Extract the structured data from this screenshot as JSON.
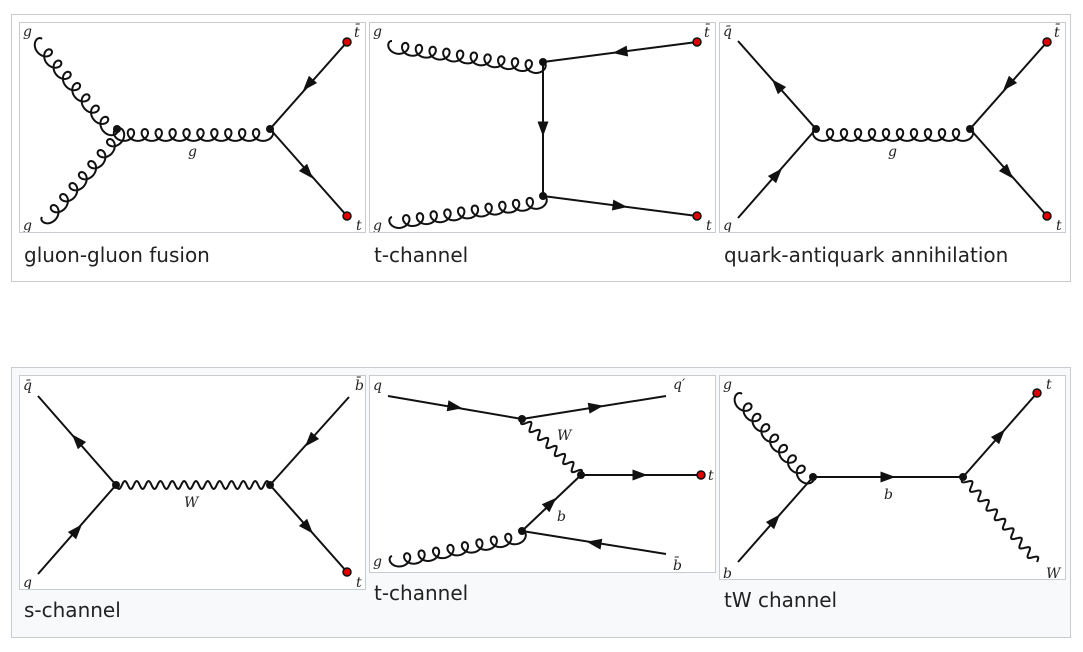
{
  "row1": {
    "panels": [
      {
        "id": "ggf",
        "caption": "gluon-gluon fusion",
        "labels": {
          "g_in_top": "g",
          "g_in_bottom": "g",
          "g_mid": "g",
          "tbar": "t̄",
          "t": "t"
        }
      },
      {
        "id": "tch1",
        "caption": "t-channel",
        "labels": {
          "g_in_top": "g",
          "g_in_bottom": "g",
          "tbar": "t̄",
          "t": "t"
        }
      },
      {
        "id": "qqa",
        "caption": "quark-antiquark annihilation",
        "labels": {
          "qbar": "q̄",
          "q": "q",
          "g_mid": "g",
          "tbar": "t̄",
          "t": "t"
        }
      }
    ]
  },
  "row2": {
    "panels": [
      {
        "id": "sch",
        "caption": "s-channel",
        "labels": {
          "qbar": "q̄",
          "q": "q",
          "W": "W",
          "bbar": "b̄",
          "t": "t"
        }
      },
      {
        "id": "tch2",
        "caption": "t-channel",
        "labels": {
          "q": "q",
          "qprime": "q′",
          "W": "W",
          "t": "t",
          "b": "b",
          "g": "g",
          "bbar": "b̄"
        }
      },
      {
        "id": "tW",
        "caption": "tW channel",
        "labels": {
          "g": "g",
          "b_in": "b",
          "b_mid": "b",
          "t": "t",
          "W": "W"
        }
      }
    ]
  },
  "colors": {
    "vertex": "#111111",
    "external_top": "#e00000",
    "line": "#111111"
  }
}
